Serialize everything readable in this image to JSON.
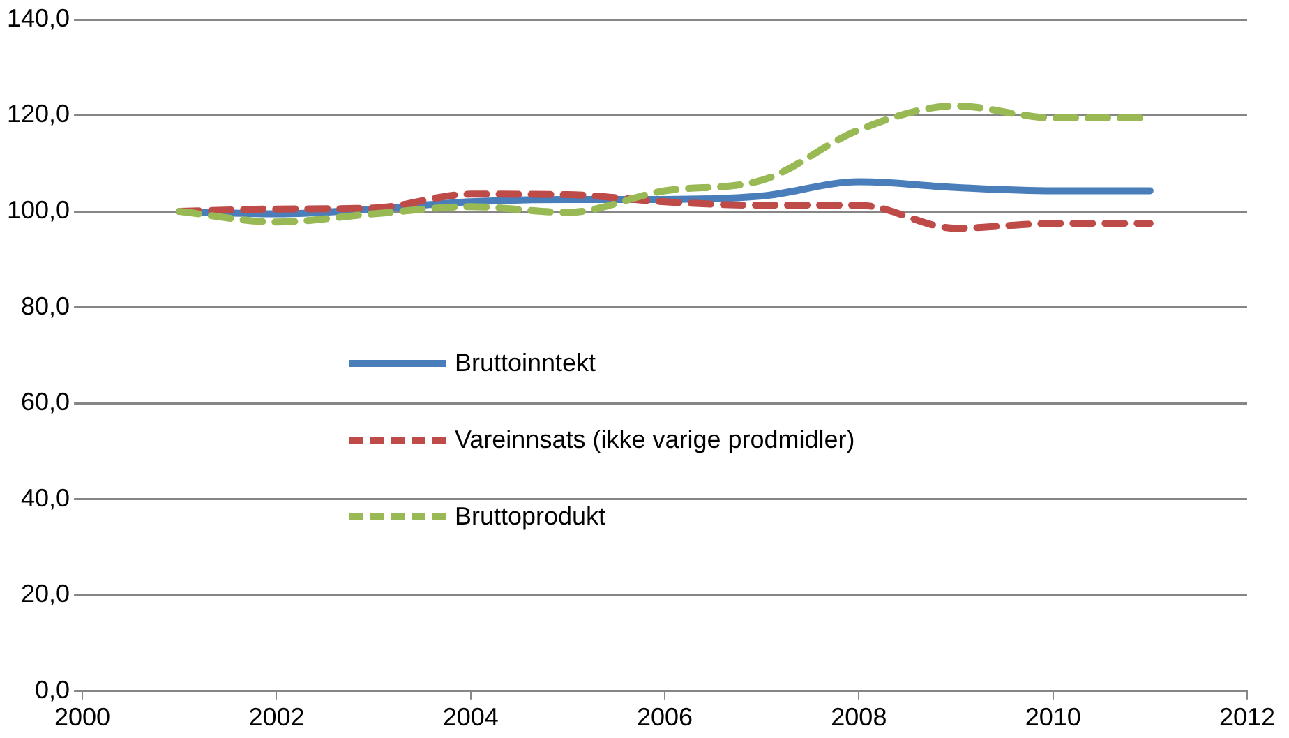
{
  "chart_data": {
    "type": "line",
    "x": [
      2001,
      2002,
      2003,
      2004,
      2005,
      2006,
      2007,
      2008,
      2009,
      2010,
      2011
    ],
    "series": [
      {
        "name": "Bruttoinntekt",
        "color": "#4a7ebb",
        "line_style": "solid",
        "values": [
          100,
          99.5,
          100.5,
          102,
          102.5,
          102.5,
          103.2,
          106.2,
          105,
          104.3,
          104.3
        ]
      },
      {
        "name": "Vareinnsats (ikke varige prodmidler)",
        "color": "#be4b48",
        "line_style": "dashed",
        "values": [
          100,
          100.5,
          100.7,
          103.6,
          103.5,
          102,
          101.3,
          101.3,
          96.5,
          97.5,
          97.5
        ]
      },
      {
        "name": "Bruttoprodukt",
        "color": "#98b954",
        "line_style": "dashed",
        "values": [
          100,
          97.8,
          99.5,
          101,
          99.8,
          104.3,
          106.5,
          117,
          122,
          119.5,
          119.5
        ]
      }
    ],
    "xlim": [
      2000,
      2012
    ],
    "xticks": [
      2000,
      2002,
      2004,
      2006,
      2008,
      2010,
      2012
    ],
    "ylim": [
      0,
      140
    ],
    "yticks": [
      {
        "value": 0,
        "label": "0,0"
      },
      {
        "value": 20,
        "label": "20,0"
      },
      {
        "value": 40,
        "label": "40,0"
      },
      {
        "value": 60,
        "label": "60,0"
      },
      {
        "value": 80,
        "label": "80,0"
      },
      {
        "value": 100,
        "label": "100,0"
      },
      {
        "value": 120,
        "label": "120,0"
      },
      {
        "value": 140,
        "label": "140,0"
      }
    ],
    "grid": "y",
    "legend": "bottom left",
    "marker": "none"
  }
}
